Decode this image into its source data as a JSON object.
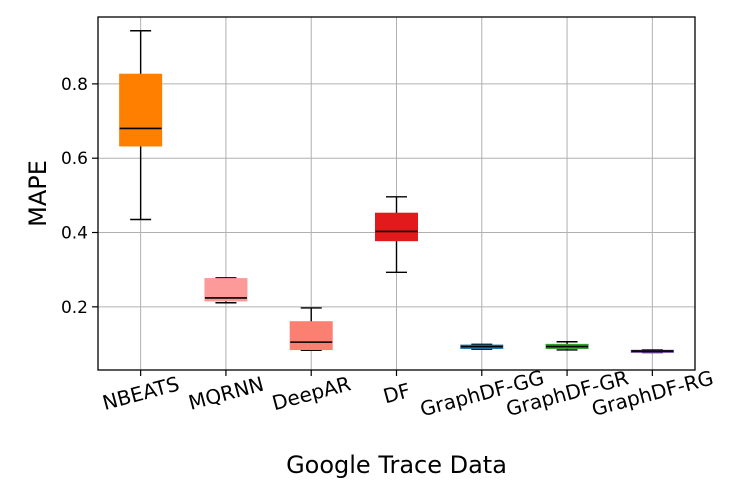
{
  "chart_data": {
    "type": "box",
    "title": "",
    "xlabel": "Google Trace Data",
    "ylabel": "MAPE",
    "ylim": [
      0.03,
      0.98
    ],
    "yticks": [
      0.2,
      0.4,
      0.6,
      0.8
    ],
    "ytick_labels": [
      "0.2",
      "0.4",
      "0.6",
      "0.8"
    ],
    "grid": true,
    "categories": [
      "NBEATS",
      "MQRNN",
      "DeepAR",
      "DF",
      "GraphDF-GG",
      "GraphDF-GR",
      "GraphDF-RG"
    ],
    "boxes": [
      {
        "label": "NBEATS",
        "whisker_low": 0.435,
        "q1": 0.633,
        "median": 0.68,
        "q3": 0.826,
        "whisker_high": 0.943,
        "color": "#ff7f00"
      },
      {
        "label": "MQRNN",
        "whisker_low": 0.211,
        "q1": 0.216,
        "median": 0.224,
        "q3": 0.276,
        "whisker_high": 0.278,
        "color": "#fb9a99"
      },
      {
        "label": "DeepAR",
        "whisker_low": 0.083,
        "q1": 0.085,
        "median": 0.105,
        "q3": 0.16,
        "whisker_high": 0.197,
        "color": "#fb8072"
      },
      {
        "label": "DF",
        "whisker_low": 0.293,
        "q1": 0.378,
        "median": 0.403,
        "q3": 0.452,
        "whisker_high": 0.496,
        "color": "#e31a1c"
      },
      {
        "label": "GraphDF-GG",
        "whisker_low": 0.086,
        "q1": 0.088,
        "median": 0.093,
        "q3": 0.097,
        "whisker_high": 0.099,
        "color": "#1f78b4"
      },
      {
        "label": "GraphDF-GR",
        "whisker_low": 0.084,
        "q1": 0.088,
        "median": 0.093,
        "q3": 0.099,
        "whisker_high": 0.106,
        "color": "#33a02c"
      },
      {
        "label": "GraphDF-RG",
        "whisker_low": 0.077,
        "q1": 0.079,
        "median": 0.081,
        "q3": 0.083,
        "whisker_high": 0.084,
        "color": "#6a3d9a"
      }
    ]
  }
}
